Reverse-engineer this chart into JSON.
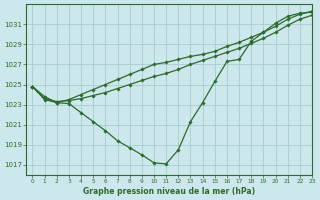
{
  "title": "Graphe pression niveau de la mer (hPa)",
  "bg_color": "#cce8ec",
  "grid_color": "#aacccc",
  "line_color": "#2d6a2d",
  "xlim": [
    -0.5,
    23
  ],
  "ylim": [
    1016.0,
    1033.0
  ],
  "yticks": [
    1017,
    1019,
    1021,
    1023,
    1025,
    1027,
    1029,
    1031
  ],
  "xticks": [
    0,
    1,
    2,
    3,
    4,
    5,
    6,
    7,
    8,
    9,
    10,
    11,
    12,
    13,
    14,
    15,
    16,
    17,
    18,
    19,
    20,
    21,
    22,
    23
  ],
  "series": [
    [
      1024.8,
      1023.8,
      1023.2,
      1023.1,
      1022.2,
      1021.3,
      1020.4,
      1019.4,
      1018.7,
      1018.0,
      1017.2,
      1017.1,
      1018.5,
      1021.3,
      1023.2,
      1025.3,
      1027.3,
      1027.5,
      1029.3,
      1030.2,
      1031.1,
      1031.8,
      1032.1,
      1032.2
    ],
    [
      1024.8,
      1023.5,
      1023.2,
      1023.5,
      1024.0,
      1024.5,
      1025.0,
      1025.5,
      1026.0,
      1026.5,
      1027.0,
      1027.2,
      1027.5,
      1027.8,
      1028.0,
      1028.3,
      1028.8,
      1029.2,
      1029.7,
      1030.2,
      1030.8,
      1031.5,
      1032.0,
      1032.3
    ],
    [
      1024.8,
      1023.6,
      1023.3,
      1023.4,
      1023.6,
      1023.9,
      1024.2,
      1024.6,
      1025.0,
      1025.4,
      1025.8,
      1026.1,
      1026.5,
      1027.0,
      1027.4,
      1027.8,
      1028.2,
      1028.6,
      1029.1,
      1029.6,
      1030.2,
      1030.9,
      1031.5,
      1031.9
    ]
  ]
}
